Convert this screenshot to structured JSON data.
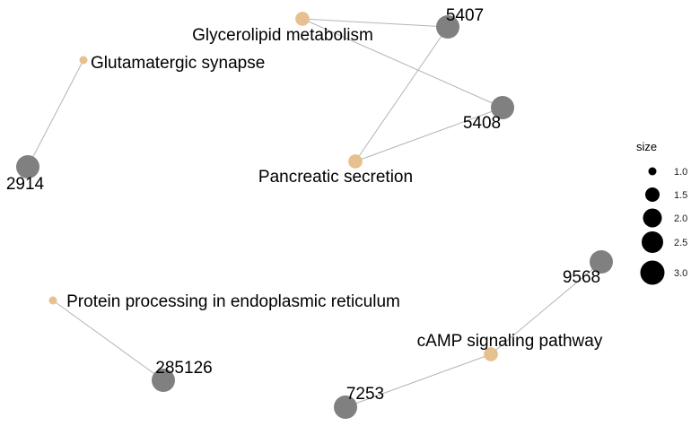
{
  "colors": {
    "pathway_node": "#e6c08f",
    "gene_node": "#808080",
    "edge": "#b4b4b4",
    "legend_symbol": "#000000"
  },
  "pathways": [
    {
      "id": "glycerolipid",
      "label": "Glycerolipid metabolism",
      "size": 1.8
    },
    {
      "id": "glutamatergic",
      "label": "Glutamatergic synapse",
      "size": 1.0
    },
    {
      "id": "pancreatic",
      "label": "Pancreatic secretion",
      "size": 1.8
    },
    {
      "id": "protein-processing",
      "label": "Protein processing in endoplasmic reticulum",
      "size": 1.0
    },
    {
      "id": "camp",
      "label": "cAMP signaling pathway",
      "size": 1.8
    }
  ],
  "genes": [
    {
      "id": "5407",
      "label": "5407"
    },
    {
      "id": "5408",
      "label": "5408"
    },
    {
      "id": "2914",
      "label": "2914"
    },
    {
      "id": "9568",
      "label": "9568"
    },
    {
      "id": "285126",
      "label": "285126"
    },
    {
      "id": "7253",
      "label": "7253"
    }
  ],
  "edges": [
    [
      "glycerolipid",
      "5407"
    ],
    [
      "glycerolipid",
      "5408"
    ],
    [
      "pancreatic",
      "5407"
    ],
    [
      "pancreatic",
      "5408"
    ],
    [
      "glutamatergic",
      "2914"
    ],
    [
      "protein-processing",
      "285126"
    ],
    [
      "camp",
      "9568"
    ],
    [
      "camp",
      "7253"
    ]
  ],
  "legend": {
    "title": "size",
    "items": [
      {
        "label": "1.0",
        "value": 1.0
      },
      {
        "label": "1.5",
        "value": 1.5
      },
      {
        "label": "2.0",
        "value": 2.0
      },
      {
        "label": "2.5",
        "value": 2.5
      },
      {
        "label": "3.0",
        "value": 3.0
      }
    ]
  }
}
